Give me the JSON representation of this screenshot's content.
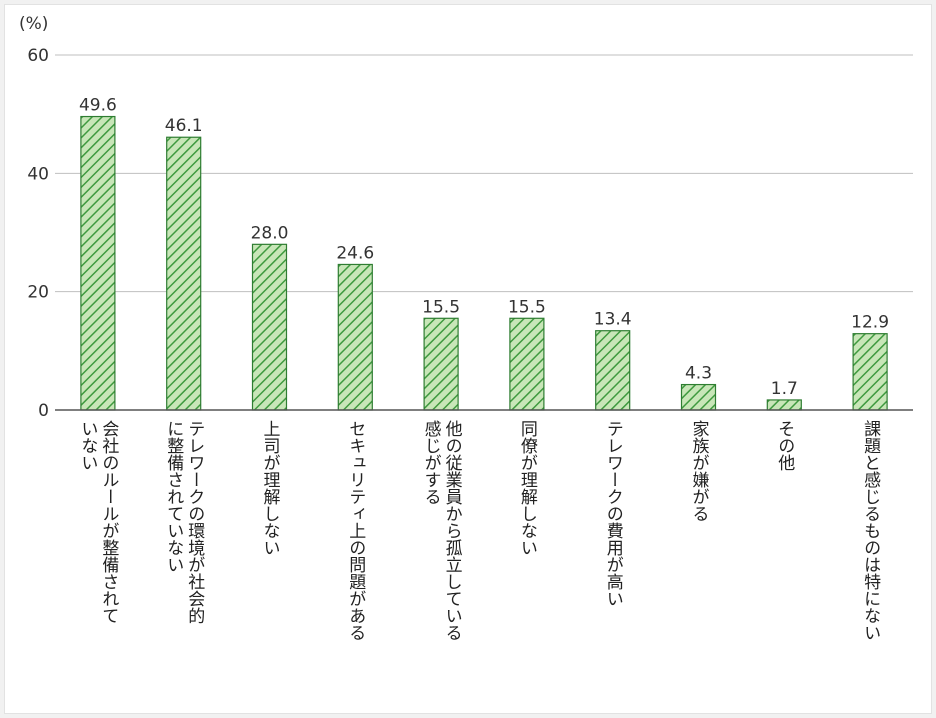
{
  "chart_data": {
    "type": "bar",
    "unit_label": "(%)",
    "title": "",
    "xlabel": "",
    "ylabel": "",
    "ylim": [
      0,
      60
    ],
    "yticks": [
      0,
      20,
      40,
      60
    ],
    "grid": true,
    "categories": [
      [
        "会社のルールが整備されて",
        "いない"
      ],
      [
        "テレワークの環境が社会的",
        "に整備されていない"
      ],
      [
        "上司が理解しない"
      ],
      [
        "セキュリティ上の問題がある"
      ],
      [
        "他の従業員から孤立している",
        "感じがする"
      ],
      [
        "同僚が理解しない"
      ],
      [
        "テレワークの費用が高い"
      ],
      [
        "家族が嫌がる"
      ],
      [
        "その他"
      ],
      [
        "課題と感じるものは特にない"
      ]
    ],
    "values": [
      49.6,
      46.1,
      28.0,
      24.6,
      15.5,
      15.5,
      13.4,
      4.3,
      1.7,
      12.9
    ],
    "value_labels": [
      "49.6",
      "46.1",
      "28.0",
      "24.6",
      "15.5",
      "15.5",
      "13.4",
      "4.3",
      "1.7",
      "12.9"
    ],
    "colors": {
      "bar_fill": "#c8e6b8",
      "bar_hatch": "#3f9a3f",
      "bar_stroke": "#2f7d32",
      "axis": "#555555",
      "grid": "#bfbfbf"
    }
  }
}
